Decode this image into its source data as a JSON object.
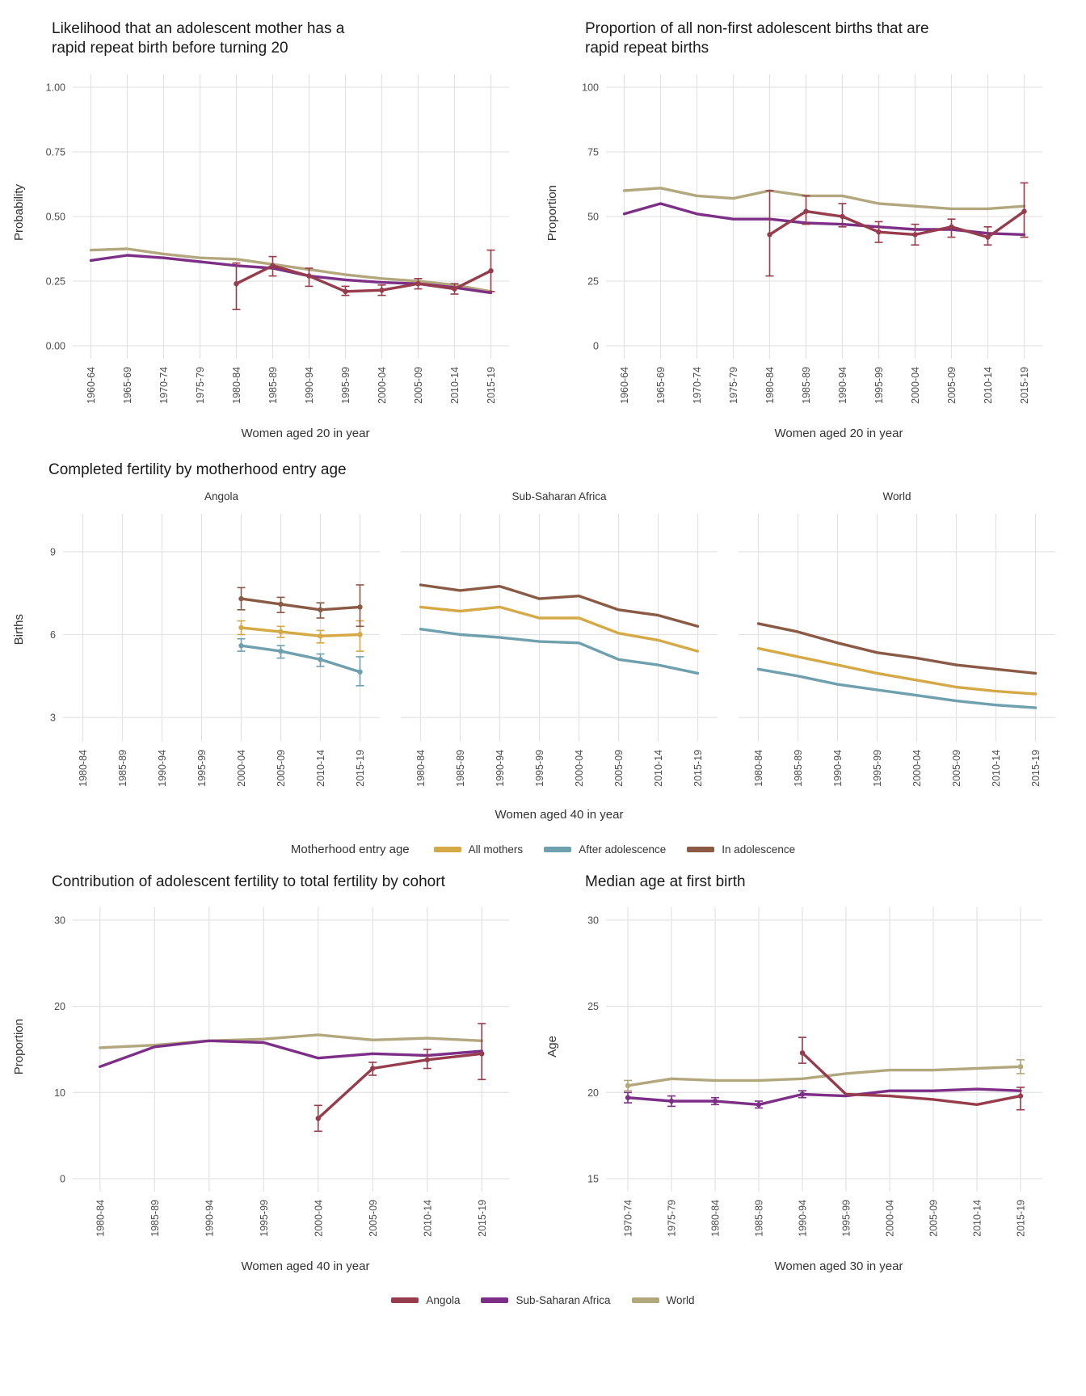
{
  "colors": {
    "angola": "#963C4C",
    "ssa": "#7D2F87",
    "world": "#B3A77E",
    "all_mothers": "#D6A947",
    "after_adolescence": "#6FA0AE",
    "in_adolescence": "#8A5A44",
    "grid": "#E4E4E4"
  },
  "legend_mid": {
    "title": "Motherhood entry age",
    "items": [
      {
        "label": "All mothers",
        "color": "all_mothers"
      },
      {
        "label": "After adolescence",
        "color": "after_adolescence"
      },
      {
        "label": "In adolescence",
        "color": "in_adolescence"
      }
    ]
  },
  "legend_bottom": {
    "items": [
      {
        "label": "Angola",
        "color": "angola"
      },
      {
        "label": "Sub-Saharan Africa",
        "color": "ssa"
      },
      {
        "label": "World",
        "color": "world"
      }
    ]
  },
  "chart_data": [
    {
      "id": "rrb-likelihood",
      "type": "line",
      "title": "Likelihood that an adolescent mother has a\nrapid repeat birth before turning 20",
      "xlabel": "Women aged 20 in year",
      "ylabel": "Probability",
      "ylim": [
        0,
        1
      ],
      "yticks": [
        0,
        0.25,
        0.5,
        0.75,
        1
      ],
      "ytick_labels": [
        "0.00",
        "0.25",
        "0.50",
        "0.75",
        "1.00"
      ],
      "categories": [
        "1960-64",
        "1965-69",
        "1970-74",
        "1975-79",
        "1980-84",
        "1985-89",
        "1990-94",
        "1995-99",
        "2000-04",
        "2005-09",
        "2010-14",
        "2015-19"
      ],
      "series": [
        {
          "name": "World",
          "color": "world",
          "values": [
            0.37,
            0.375,
            0.355,
            0.34,
            0.335,
            0.315,
            0.295,
            0.275,
            0.26,
            0.25,
            0.235,
            0.21
          ]
        },
        {
          "name": "Sub-Saharan Africa",
          "color": "ssa",
          "values": [
            0.33,
            0.35,
            0.34,
            0.325,
            0.31,
            0.3,
            0.27,
            0.255,
            0.245,
            0.24,
            0.225,
            0.205
          ]
        },
        {
          "name": "Angola",
          "color": "angola",
          "values": [
            null,
            null,
            null,
            null,
            0.24,
            0.31,
            0.27,
            0.21,
            0.215,
            0.24,
            0.22,
            0.29
          ],
          "errors": [
            null,
            null,
            null,
            null,
            [
              0.14,
              0.32
            ],
            [
              0.27,
              0.345
            ],
            [
              0.23,
              0.3
            ],
            [
              0.195,
              0.23
            ],
            [
              0.195,
              0.235
            ],
            [
              0.22,
              0.26
            ],
            [
              0.2,
              0.24
            ],
            [
              0.21,
              0.37
            ]
          ]
        }
      ]
    },
    {
      "id": "rrb-proportion",
      "type": "line",
      "title": "Proportion of all non-first adolescent births that are\nrapid repeat births",
      "xlabel": "Women aged 20 in year",
      "ylabel": "Proportion",
      "ylim": [
        0,
        100
      ],
      "yticks": [
        0,
        25,
        50,
        75,
        100
      ],
      "ytick_labels": [
        "0",
        "25",
        "50",
        "75",
        "100"
      ],
      "categories": [
        "1960-64",
        "1965-69",
        "1970-74",
        "1975-79",
        "1980-84",
        "1985-89",
        "1990-94",
        "1995-99",
        "2000-04",
        "2005-09",
        "2010-14",
        "2015-19"
      ],
      "series": [
        {
          "name": "World",
          "color": "world",
          "values": [
            60,
            61,
            58,
            57,
            60,
            58,
            58,
            55,
            54,
            53,
            53,
            54
          ]
        },
        {
          "name": "Sub-Saharan Africa",
          "color": "ssa",
          "values": [
            51,
            55,
            51,
            49,
            49,
            47.5,
            47,
            46,
            45,
            45,
            43.5,
            43
          ]
        },
        {
          "name": "Angola",
          "color": "angola",
          "values": [
            null,
            null,
            null,
            null,
            43,
            52,
            50,
            44,
            43,
            46,
            42,
            52
          ],
          "errors": [
            null,
            null,
            null,
            null,
            [
              27,
              60
            ],
            [
              47,
              58
            ],
            [
              46,
              55
            ],
            [
              40,
              48
            ],
            [
              39,
              47
            ],
            [
              42,
              49
            ],
            [
              39,
              46
            ],
            [
              42,
              63
            ]
          ]
        }
      ]
    },
    {
      "id": "completed-fertility",
      "type": "line-facets",
      "title": "Completed fertility by motherhood entry age",
      "xlabel": "Women aged 40 in year",
      "ylabel": "Births",
      "ylim": [
        2.5,
        10
      ],
      "yticks": [
        3,
        6,
        9
      ],
      "ytick_labels": [
        "3",
        "6",
        "9"
      ],
      "categories": [
        "1980-84",
        "1985-89",
        "1990-94",
        "1995-99",
        "2000-04",
        "2005-09",
        "2010-14",
        "2015-19"
      ],
      "facets": [
        {
          "label": "Angola",
          "series": [
            {
              "name": "All mothers",
              "color": "all_mothers",
              "values": [
                null,
                null,
                null,
                null,
                6.25,
                6.1,
                5.95,
                6.0
              ],
              "errors": [
                null,
                null,
                null,
                null,
                [
                  6.0,
                  6.5
                ],
                [
                  5.9,
                  6.3
                ],
                [
                  5.7,
                  6.15
                ],
                [
                  5.4,
                  6.5
                ]
              ]
            },
            {
              "name": "After adolescence",
              "color": "after_adolescence",
              "values": [
                null,
                null,
                null,
                null,
                5.6,
                5.4,
                5.1,
                4.65
              ],
              "errors": [
                null,
                null,
                null,
                null,
                [
                  5.4,
                  5.85
                ],
                [
                  5.15,
                  5.6
                ],
                [
                  4.85,
                  5.3
                ],
                [
                  4.15,
                  5.2
                ]
              ]
            },
            {
              "name": "In adolescence",
              "color": "in_adolescence",
              "values": [
                null,
                null,
                null,
                null,
                7.3,
                7.1,
                6.9,
                7.0
              ],
              "errors": [
                null,
                null,
                null,
                null,
                [
                  6.9,
                  7.7
                ],
                [
                  6.8,
                  7.35
                ],
                [
                  6.6,
                  7.15
                ],
                [
                  6.3,
                  7.8
                ]
              ]
            }
          ]
        },
        {
          "label": "Sub-Saharan Africa",
          "series": [
            {
              "name": "All mothers",
              "color": "all_mothers",
              "values": [
                7.0,
                6.85,
                7.0,
                6.6,
                6.6,
                6.05,
                5.8,
                5.4
              ]
            },
            {
              "name": "After adolescence",
              "color": "after_adolescence",
              "values": [
                6.2,
                6.0,
                5.9,
                5.75,
                5.7,
                5.1,
                4.9,
                4.6
              ]
            },
            {
              "name": "In adolescence",
              "color": "in_adolescence",
              "values": [
                7.8,
                7.6,
                7.75,
                7.3,
                7.4,
                6.9,
                6.7,
                6.3
              ]
            }
          ]
        },
        {
          "label": "World",
          "series": [
            {
              "name": "All mothers",
              "color": "all_mothers",
              "values": [
                5.5,
                5.2,
                4.9,
                4.6,
                4.35,
                4.1,
                3.95,
                3.85
              ]
            },
            {
              "name": "After adolescence",
              "color": "after_adolescence",
              "values": [
                4.75,
                4.5,
                4.2,
                4.0,
                3.8,
                3.6,
                3.45,
                3.35
              ]
            },
            {
              "name": "In adolescence",
              "color": "in_adolescence",
              "values": [
                6.4,
                6.1,
                5.7,
                5.35,
                5.15,
                4.9,
                4.75,
                4.6
              ]
            }
          ]
        }
      ]
    },
    {
      "id": "adolescent-contribution",
      "type": "line",
      "title": "Contribution of adolescent fertility to total fertility by cohort",
      "xlabel": "Women aged 40 in year",
      "ylabel": "Proportion",
      "ylim": [
        0,
        30
      ],
      "yticks": [
        0,
        10,
        20,
        30
      ],
      "ytick_labels": [
        "0",
        "10",
        "20",
        "30"
      ],
      "categories": [
        "1980-84",
        "1985-89",
        "1990-94",
        "1995-99",
        "2000-04",
        "2005-09",
        "2010-14",
        "2015-19"
      ],
      "series": [
        {
          "name": "World",
          "color": "world",
          "values": [
            15.2,
            15.5,
            16.0,
            16.2,
            16.7,
            16.1,
            16.3,
            16.0
          ]
        },
        {
          "name": "Sub-Saharan Africa",
          "color": "ssa",
          "values": [
            13.0,
            15.3,
            16.0,
            15.8,
            14.0,
            14.5,
            14.3,
            14.8
          ]
        },
        {
          "name": "Angola",
          "color": "angola",
          "values": [
            null,
            null,
            null,
            null,
            7.0,
            12.8,
            13.8,
            14.5
          ],
          "errors": [
            null,
            null,
            null,
            null,
            [
              5.5,
              8.5
            ],
            [
              12.0,
              13.5
            ],
            [
              12.8,
              15.0
            ],
            [
              11.5,
              18.0
            ]
          ]
        }
      ]
    },
    {
      "id": "median-age-first-birth",
      "type": "line",
      "title": "Median age at first birth",
      "xlabel": "Women aged 30 in year",
      "ylabel": "Age",
      "ylim": [
        15,
        30
      ],
      "yticks": [
        15,
        20,
        25,
        30
      ],
      "ytick_labels": [
        "15",
        "20",
        "25",
        "30"
      ],
      "categories": [
        "1970-74",
        "1975-79",
        "1980-84",
        "1985-89",
        "1990-94",
        "1995-99",
        "2000-04",
        "2005-09",
        "2010-14",
        "2015-19"
      ],
      "series": [
        {
          "name": "World",
          "color": "world",
          "values": [
            20.4,
            20.8,
            20.7,
            20.7,
            20.8,
            21.1,
            21.3,
            21.3,
            21.4,
            21.5
          ],
          "errors": [
            [
              20.1,
              20.7
            ],
            null,
            null,
            null,
            null,
            null,
            null,
            null,
            null,
            [
              21.1,
              21.9
            ]
          ]
        },
        {
          "name": "Sub-Saharan Africa",
          "color": "ssa",
          "values": [
            19.7,
            19.5,
            19.5,
            19.3,
            19.9,
            19.8,
            20.1,
            20.1,
            20.2,
            20.1
          ],
          "errors": [
            [
              19.4,
              20.0
            ],
            [
              19.2,
              19.8
            ],
            [
              19.3,
              19.7
            ],
            [
              19.1,
              19.5
            ],
            [
              19.7,
              20.1
            ],
            null,
            null,
            null,
            null,
            null
          ]
        },
        {
          "name": "Angola",
          "color": "angola",
          "values": [
            null,
            null,
            null,
            null,
            22.3,
            19.9,
            19.8,
            19.6,
            19.3,
            19.8
          ],
          "errors": [
            null,
            null,
            null,
            null,
            [
              21.7,
              23.2
            ],
            null,
            null,
            null,
            null,
            [
              19.0,
              20.3
            ]
          ]
        }
      ]
    }
  ]
}
